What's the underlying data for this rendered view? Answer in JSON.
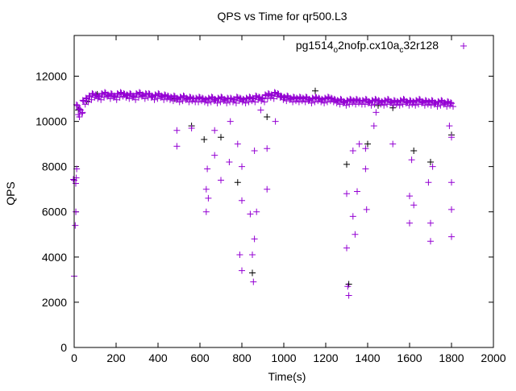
{
  "chart_data": {
    "type": "scatter",
    "title": "QPS vs Time for qr500.L3",
    "xlabel": "Time(s)",
    "ylabel": "QPS",
    "xlim": [
      0,
      2000
    ],
    "ylim": [
      0,
      13800
    ],
    "xticks": [
      0,
      200,
      400,
      600,
      800,
      1000,
      1200,
      1400,
      1600,
      1800,
      2000
    ],
    "yticks": [
      0,
      2000,
      4000,
      6000,
      8000,
      10000,
      12000
    ],
    "grid": false,
    "legend_position": "top-right",
    "legend_parts": [
      "pg1514",
      "o",
      "2nofp.cx10a",
      "c",
      "32r128"
    ],
    "series": [
      {
        "name": "pg1514_o2nofp.cx10a_c32r128",
        "color": "#9400d3",
        "x": [
          0,
          15,
          30,
          45,
          60,
          75,
          90,
          105,
          120,
          135,
          150,
          165,
          180,
          195,
          210,
          225,
          240,
          255,
          270,
          285,
          300,
          315,
          330,
          345,
          360,
          375,
          390,
          405,
          420,
          435,
          450,
          465,
          480,
          495,
          510,
          525,
          540,
          555,
          570,
          585,
          600,
          615,
          630,
          645,
          660,
          675,
          690,
          705,
          720,
          735,
          750,
          765,
          780,
          795,
          810,
          825,
          840,
          855,
          870,
          885,
          900,
          915,
          930,
          945,
          960,
          975,
          990,
          1005,
          1020,
          1035,
          1050,
          1065,
          1080,
          1095,
          1110,
          1125,
          1140,
          1155,
          1170,
          1185,
          1200,
          1215,
          1230,
          1245,
          1260,
          1275,
          1290,
          1305,
          1320,
          1335,
          1350,
          1365,
          1380,
          1395,
          1410,
          1425,
          1440,
          1455,
          1470,
          1485,
          1500,
          1515,
          1530,
          1545,
          1560,
          1575,
          1590,
          1605,
          1620,
          1635,
          1650,
          1665,
          1680,
          1695,
          1710,
          1725,
          1740,
          1755,
          1770,
          1785,
          1800,
          0,
          5,
          8,
          10,
          12,
          20,
          25,
          40,
          490,
          490,
          560,
          630,
          630,
          635,
          640,
          670,
          670,
          700,
          740,
          745,
          780,
          790,
          800,
          800,
          800,
          840,
          850,
          855,
          860,
          860,
          870,
          890,
          920,
          920,
          960,
          1300,
          1305,
          1310,
          1300,
          1330,
          1330,
          1340,
          1350,
          1360,
          1390,
          1395,
          1390,
          1430,
          1440,
          1520,
          1600,
          1600,
          1610,
          1620,
          1690,
          1700,
          1700,
          1710,
          1800,
          1800,
          1800,
          1800,
          1790
        ],
        "y": [
          7400,
          10700,
          10500,
          10900,
          11000,
          11100,
          11200,
          11150,
          11100,
          11200,
          11250,
          11150,
          11200,
          11100,
          11200,
          11250,
          11200,
          11150,
          11200,
          11100,
          11200,
          11250,
          11150,
          11200,
          11200,
          11100,
          11150,
          11200,
          11100,
          11150,
          11100,
          11050,
          11100,
          11000,
          11050,
          11100,
          11000,
          11050,
          11000,
          11000,
          11050,
          11000,
          10950,
          11000,
          11050,
          10950,
          11000,
          11050,
          10950,
          11000,
          11000,
          10950,
          11050,
          11000,
          10950,
          11000,
          11050,
          11000,
          11100,
          11050,
          11000,
          11150,
          11200,
          11150,
          11250,
          11200,
          11100,
          11050,
          11100,
          11000,
          11050,
          11000,
          11050,
          11000,
          11050,
          10950,
          11000,
          11050,
          11000,
          10950,
          11000,
          11050,
          11000,
          10950,
          10900,
          10950,
          10850,
          10900,
          10950,
          10900,
          10950,
          10900,
          10900,
          10950,
          10850,
          10900,
          10950,
          10900,
          10850,
          10900,
          10950,
          10850,
          10900,
          10850,
          10900,
          10950,
          10850,
          10900,
          10850,
          10900,
          10950,
          10850,
          10900,
          10850,
          10900,
          10800,
          10850,
          10900,
          10800,
          10850,
          10800,
          3150,
          5400,
          6000,
          7500,
          7900,
          10300,
          10200,
          10400,
          8900,
          9600,
          9700,
          7000,
          6000,
          7900,
          6600,
          8500,
          9600,
          7400,
          8200,
          10000,
          9000,
          4100,
          3400,
          6500,
          8000,
          5900,
          4100,
          2900,
          4800,
          8700,
          6000,
          10500,
          8800,
          7000,
          10000,
          4400,
          2700,
          2300,
          6800,
          8700,
          5800,
          5000,
          6900,
          9000,
          8800,
          6100,
          7900,
          9800,
          10400,
          9000,
          6700,
          5500,
          8300,
          6300,
          7300,
          5500,
          4700,
          8000,
          4900,
          6100,
          7300,
          9300,
          9800
        ]
      },
      {
        "name": "",
        "color": "#000000",
        "x": [
          20,
          60,
          110,
          250,
          480,
          560,
          620,
          700,
          780,
          850,
          920,
          1000,
          1150,
          1300,
          1310,
          1400,
          1450,
          1520,
          1620,
          1700,
          1800
        ],
        "y": [
          10500,
          10900,
          11200,
          11150,
          11000,
          9800,
          9200,
          9300,
          7300,
          3300,
          10200,
          11050,
          11350,
          8100,
          2800,
          9000,
          10700,
          10600,
          8700,
          8200,
          9400
        ]
      }
    ]
  }
}
